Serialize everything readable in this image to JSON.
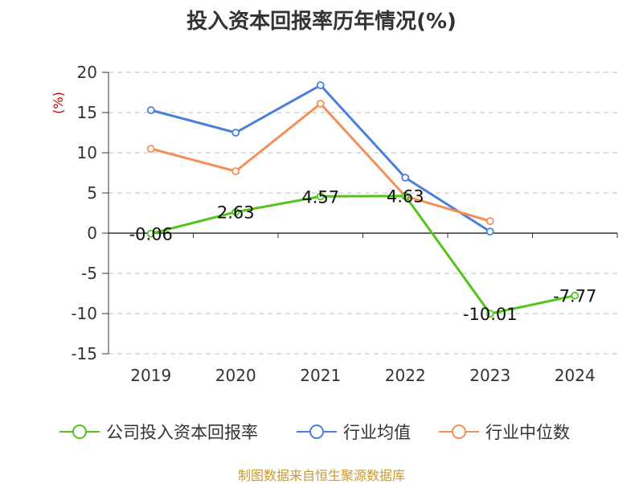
{
  "chart_data": {
    "type": "line",
    "title": "投入资本回报率历年情况(%)",
    "ylabel": "(%)",
    "xlabel": "",
    "categories": [
      "2019",
      "2020",
      "2021",
      "2022",
      "2023",
      "2024"
    ],
    "ylim": [
      -15,
      20
    ],
    "yticks": [
      20,
      15,
      10,
      5,
      0,
      -5,
      -10,
      -15
    ],
    "grid": true,
    "legend_position": "bottom",
    "series": [
      {
        "name": "公司投入资本回报率",
        "color": "#52c41a",
        "values": [
          -0.06,
          2.63,
          4.57,
          4.63,
          -10.01,
          -7.77
        ],
        "labels": [
          "-0.06",
          "2.63",
          "4.57",
          "4.63",
          "-10.01",
          "-7.77"
        ]
      },
      {
        "name": "行业均值",
        "color": "#4a7fdc",
        "values": [
          15.3,
          12.5,
          18.4,
          6.9,
          0.2,
          null
        ]
      },
      {
        "name": "行业中位数",
        "color": "#f48f57",
        "values": [
          10.5,
          7.7,
          16.1,
          4.6,
          1.5,
          null
        ]
      }
    ]
  },
  "source": "制图数据来自恒生聚源数据库"
}
